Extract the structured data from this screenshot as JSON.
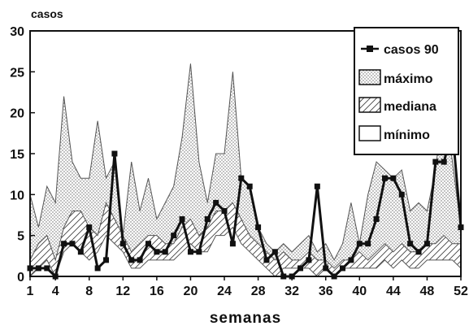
{
  "chart_data": {
    "type": "area",
    "ylabel": "casos",
    "xlabel": "semanas",
    "ylim": [
      0,
      30
    ],
    "xlim": [
      1,
      52
    ],
    "yticks": [
      0,
      5,
      10,
      15,
      20,
      25,
      30
    ],
    "xticks": [
      1,
      4,
      8,
      12,
      16,
      20,
      24,
      28,
      32,
      36,
      40,
      44,
      48,
      52
    ],
    "legend_position": "top-right",
    "series": [
      {
        "name": "casos 90",
        "style": "line-with-square-markers",
        "color": "#111111",
        "x": [
          1,
          2,
          3,
          4,
          5,
          6,
          7,
          8,
          9,
          10,
          11,
          12,
          13,
          14,
          15,
          16,
          17,
          18,
          19,
          20,
          21,
          22,
          23,
          24,
          25,
          26,
          27,
          28,
          29,
          30,
          31,
          32,
          33,
          34,
          35,
          36,
          37,
          38,
          39,
          40,
          41,
          42,
          43,
          44,
          45,
          46,
          47,
          48,
          49,
          50,
          51,
          52
        ],
        "values": [
          1,
          1,
          1,
          0,
          4,
          4,
          3,
          6,
          1,
          2,
          15,
          4,
          2,
          2,
          4,
          3,
          3,
          5,
          7,
          3,
          3,
          7,
          9,
          8,
          4,
          12,
          11,
          6,
          2,
          3,
          0,
          0,
          1,
          2,
          11,
          1,
          0,
          1,
          2,
          4,
          4,
          7,
          12,
          12,
          10,
          4,
          3,
          4,
          14,
          14,
          18,
          6
        ]
      },
      {
        "name": "máximo",
        "style": "dotted-fill",
        "color": "#555555",
        "x": [
          1,
          2,
          3,
          4,
          5,
          6,
          7,
          8,
          9,
          10,
          11,
          12,
          13,
          14,
          15,
          16,
          17,
          18,
          19,
          20,
          21,
          22,
          23,
          24,
          25,
          26,
          27,
          28,
          29,
          30,
          31,
          32,
          33,
          34,
          35,
          36,
          37,
          38,
          39,
          40,
          41,
          42,
          43,
          44,
          45,
          46,
          47,
          48,
          49,
          50,
          51,
          52
        ],
        "values": [
          10,
          6,
          11,
          9,
          22,
          14,
          12,
          12,
          19,
          12,
          14,
          5,
          14,
          8,
          12,
          7,
          9,
          11,
          17,
          26,
          14,
          9,
          15,
          15,
          25,
          12,
          11,
          6,
          4,
          3,
          4,
          3,
          4,
          5,
          3,
          4,
          2,
          4,
          9,
          4,
          10,
          14,
          13,
          12,
          13,
          8,
          9,
          8,
          13,
          22,
          14,
          6
        ]
      },
      {
        "name": "mediana",
        "style": "hatched-fill",
        "color": "#555555",
        "x": [
          1,
          2,
          3,
          4,
          5,
          6,
          7,
          8,
          9,
          10,
          11,
          12,
          13,
          14,
          15,
          16,
          17,
          18,
          19,
          20,
          21,
          22,
          23,
          24,
          25,
          26,
          27,
          28,
          29,
          30,
          31,
          32,
          33,
          34,
          35,
          36,
          37,
          38,
          39,
          40,
          41,
          42,
          43,
          44,
          45,
          46,
          47,
          48,
          49,
          50,
          51,
          52
        ],
        "values": [
          2,
          4,
          5,
          2,
          6,
          8,
          8,
          6,
          5,
          9,
          7,
          5,
          3,
          4,
          5,
          5,
          4,
          4,
          6,
          7,
          5,
          6,
          8,
          8,
          9,
          7,
          5,
          4,
          3,
          2,
          3,
          2,
          2,
          3,
          2,
          2,
          1,
          2,
          2,
          3,
          2,
          3,
          4,
          3,
          4,
          3,
          3,
          4,
          4,
          5,
          4,
          4
        ]
      },
      {
        "name": "mínimo",
        "style": "empty-fill",
        "color": "#555555",
        "x": [
          1,
          2,
          3,
          4,
          5,
          6,
          7,
          8,
          9,
          10,
          11,
          12,
          13,
          14,
          15,
          16,
          17,
          18,
          19,
          20,
          21,
          22,
          23,
          24,
          25,
          26,
          27,
          28,
          29,
          30,
          31,
          32,
          33,
          34,
          35,
          36,
          37,
          38,
          39,
          40,
          41,
          42,
          43,
          44,
          45,
          46,
          47,
          48,
          49,
          50,
          51,
          52
        ],
        "values": [
          0,
          1,
          2,
          0,
          3,
          4,
          3,
          2,
          3,
          5,
          4,
          3,
          1,
          1,
          2,
          2,
          2,
          2,
          3,
          4,
          3,
          3,
          5,
          5,
          6,
          4,
          3,
          2,
          1,
          0,
          1,
          1,
          1,
          1,
          0,
          1,
          0,
          1,
          1,
          1,
          1,
          1,
          2,
          1,
          2,
          1,
          1,
          2,
          2,
          2,
          2,
          1
        ]
      }
    ]
  }
}
